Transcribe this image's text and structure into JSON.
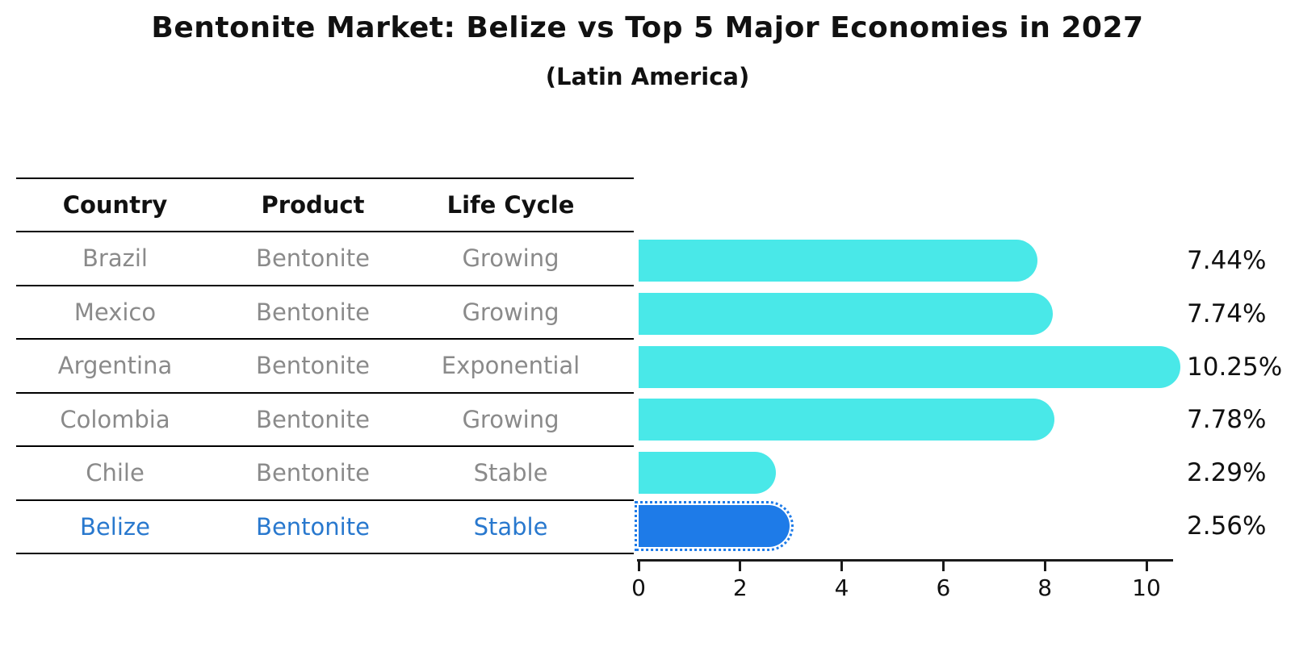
{
  "title": "Bentonite Market: Belize vs Top 5 Major Economies in 2027",
  "subtitle": "(Latin America)",
  "table": {
    "headers": [
      "Country",
      "Product",
      "Life Cycle"
    ],
    "rows": [
      {
        "country": "Brazil",
        "product": "Bentonite",
        "life_cycle": "Growing",
        "highlight": false
      },
      {
        "country": "Mexico",
        "product": "Bentonite",
        "life_cycle": "Growing",
        "highlight": false
      },
      {
        "country": "Argentina",
        "product": "Bentonite",
        "life_cycle": "Exponential",
        "highlight": false
      },
      {
        "country": "Colombia",
        "product": "Bentonite",
        "life_cycle": "Growing",
        "highlight": false
      },
      {
        "country": "Chile",
        "product": "Bentonite",
        "life_cycle": "Stable",
        "highlight": false
      },
      {
        "country": "Belize",
        "product": "Bentonite",
        "life_cycle": "Stable",
        "highlight": true
      }
    ]
  },
  "chart_data": {
    "type": "bar",
    "orientation": "horizontal",
    "categories": [
      "Brazil",
      "Mexico",
      "Argentina",
      "Colombia",
      "Chile",
      "Belize"
    ],
    "values": [
      7.44,
      7.74,
      10.25,
      7.78,
      2.29,
      2.56
    ],
    "labels": [
      "7.44%",
      "7.74%",
      "10.25%",
      "7.78%",
      "2.29%",
      "2.56%"
    ],
    "unit": "%",
    "x_ticks": [
      0,
      2,
      4,
      6,
      8,
      10
    ],
    "xlim": [
      0,
      10.5
    ],
    "grid": false,
    "legend": false,
    "bar_color": "#49e8e8",
    "highlight_color": "#1e7be8",
    "highlight_text_color": "#2878ce",
    "highlight_index": 5,
    "highlight_style": "dotted-outline-rounded-bar"
  }
}
